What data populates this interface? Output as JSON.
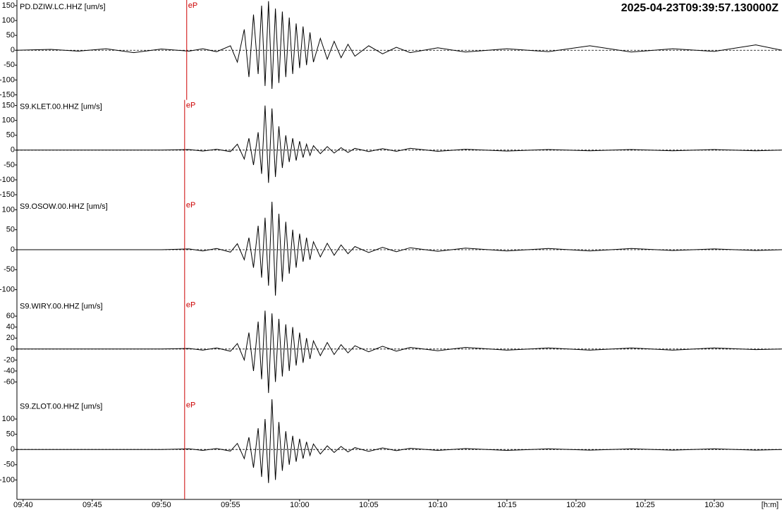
{
  "title": "2025-04-23T09:39:57.130000Z",
  "chart_data": [
    {
      "type": "line",
      "title": "PD.DZIW.LC.HHZ [um/s]",
      "x": [
        "09:39:30",
        "09:42:00",
        "09:44:00",
        "09:46:00",
        "09:48:00",
        "09:50:00",
        "09:52:00",
        "09:53:00",
        "09:54:00",
        "09:55:00",
        "09:55:30",
        "09:56:00",
        "09:56:20",
        "09:56:40",
        "09:57:00",
        "09:57:15",
        "09:57:30",
        "09:57:45",
        "09:58:00",
        "09:58:15",
        "09:58:30",
        "09:58:45",
        "09:59:00",
        "09:59:15",
        "09:59:30",
        "09:59:45",
        "10:00:00",
        "10:00:15",
        "10:00:30",
        "10:00:45",
        "10:01:00",
        "10:01:30",
        "10:02:00",
        "10:02:30",
        "10:03:00",
        "10:03:30",
        "10:04:00",
        "10:05:00",
        "10:06:00",
        "10:07:00",
        "10:08:00",
        "10:10:00",
        "10:12:00",
        "10:15:00",
        "10:18:00",
        "10:21:00",
        "10:24:00",
        "10:27:00",
        "10:30:00",
        "10:33:00",
        "10:34:54"
      ],
      "values": [
        0,
        3,
        -3,
        5,
        -8,
        4,
        -3,
        5,
        -5,
        15,
        -40,
        70,
        -90,
        120,
        -80,
        150,
        -120,
        165,
        -130,
        140,
        -110,
        130,
        -90,
        110,
        -80,
        90,
        -60,
        80,
        -50,
        60,
        -40,
        40,
        -30,
        30,
        -25,
        20,
        -20,
        15,
        -12,
        10,
        -8,
        8,
        -6,
        5,
        -5,
        15,
        -6,
        5,
        -4,
        18,
        0
      ],
      "color": "#000000",
      "xlim": [
        "09:39:30",
        "10:34:54"
      ],
      "ylim": [
        -167,
        169
      ],
      "yticks": [
        150,
        100,
        50,
        0,
        -50,
        -100,
        -150
      ],
      "pick": {
        "label": "eP",
        "time": "09:51:50",
        "color": "#cc0000"
      }
    },
    {
      "type": "line",
      "title": "S9.KLET.00.HHZ [um/s]",
      "x": [
        "09:39:30",
        "09:42:00",
        "09:44:00",
        "09:46:00",
        "09:48:00",
        "09:50:00",
        "09:52:00",
        "09:53:00",
        "09:54:00",
        "09:55:00",
        "09:55:30",
        "09:56:00",
        "09:56:20",
        "09:56:40",
        "09:57:00",
        "09:57:15",
        "09:57:30",
        "09:57:45",
        "09:58:00",
        "09:58:15",
        "09:58:30",
        "09:58:45",
        "09:59:00",
        "09:59:15",
        "09:59:30",
        "09:59:45",
        "10:00:00",
        "10:00:15",
        "10:00:30",
        "10:00:45",
        "10:01:00",
        "10:01:30",
        "10:02:00",
        "10:02:30",
        "10:03:00",
        "10:03:30",
        "10:04:00",
        "10:05:00",
        "10:06:00",
        "10:07:00",
        "10:08:00",
        "10:10:00",
        "10:12:00",
        "10:15:00",
        "10:18:00",
        "10:21:00",
        "10:24:00",
        "10:27:00",
        "10:30:00",
        "10:33:00",
        "10:34:54"
      ],
      "values": [
        0,
        0,
        0,
        0,
        0,
        0,
        2,
        -3,
        3,
        -5,
        20,
        -30,
        40,
        -50,
        60,
        -80,
        150,
        -110,
        140,
        -90,
        80,
        -60,
        50,
        -40,
        40,
        -35,
        30,
        -25,
        20,
        -18,
        15,
        -12,
        12,
        -10,
        8,
        -8,
        6,
        -5,
        5,
        -4,
        6,
        -4,
        3,
        -3,
        2,
        -2,
        2,
        -2,
        2,
        -2,
        0
      ],
      "color": "#000000",
      "xlim": [
        "09:39:30",
        "10:34:54"
      ],
      "ylim": [
        -167,
        169
      ],
      "yticks": [
        150,
        100,
        50,
        0,
        -50,
        -100,
        -150
      ],
      "pick": {
        "label": "eP",
        "time": "09:51:41",
        "color": "#cc0000"
      }
    },
    {
      "type": "line",
      "title": "S9.OSOW.00.HHZ [um/s]",
      "x": [
        "09:39:30",
        "09:42:00",
        "09:44:00",
        "09:46:00",
        "09:48:00",
        "09:50:00",
        "09:52:00",
        "09:53:00",
        "09:54:00",
        "09:55:00",
        "09:55:30",
        "09:56:00",
        "09:56:20",
        "09:56:40",
        "09:57:00",
        "09:57:15",
        "09:57:30",
        "09:57:45",
        "09:58:00",
        "09:58:15",
        "09:58:30",
        "09:58:45",
        "09:59:00",
        "09:59:15",
        "09:59:30",
        "09:59:45",
        "10:00:00",
        "10:00:15",
        "10:00:30",
        "10:00:45",
        "10:01:00",
        "10:01:30",
        "10:02:00",
        "10:02:30",
        "10:03:00",
        "10:03:30",
        "10:04:00",
        "10:05:00",
        "10:06:00",
        "10:07:00",
        "10:08:00",
        "10:10:00",
        "10:12:00",
        "10:15:00",
        "10:18:00",
        "10:21:00",
        "10:24:00",
        "10:27:00",
        "10:30:00",
        "10:33:00",
        "10:34:54"
      ],
      "values": [
        0,
        0,
        0,
        0,
        0,
        0,
        2,
        -3,
        3,
        -6,
        15,
        -25,
        30,
        -45,
        60,
        -70,
        80,
        -90,
        120,
        -115,
        90,
        -80,
        70,
        -60,
        50,
        -45,
        40,
        -30,
        30,
        -25,
        20,
        -18,
        16,
        -14,
        12,
        -10,
        8,
        -7,
        6,
        -5,
        5,
        -4,
        4,
        -3,
        3,
        -3,
        3,
        -2,
        2,
        -2,
        0
      ],
      "color": "#000000",
      "xlim": [
        "09:39:30",
        "10:34:54"
      ],
      "ylim": [
        -125,
        125
      ],
      "yticks": [
        100,
        50,
        0,
        -50,
        -100
      ],
      "pick": {
        "label": "eP",
        "time": "09:51:41",
        "color": "#cc0000"
      }
    },
    {
      "type": "line",
      "title": "S9.WIRY.00.HHZ [um/s]",
      "x": [
        "09:39:30",
        "09:42:00",
        "09:44:00",
        "09:46:00",
        "09:48:00",
        "09:50:00",
        "09:52:00",
        "09:53:00",
        "09:54:00",
        "09:55:00",
        "09:55:30",
        "09:56:00",
        "09:56:20",
        "09:56:40",
        "09:57:00",
        "09:57:15",
        "09:57:30",
        "09:57:45",
        "09:58:00",
        "09:58:15",
        "09:58:30",
        "09:58:45",
        "09:59:00",
        "09:59:15",
        "09:59:30",
        "09:59:45",
        "10:00:00",
        "10:00:15",
        "10:00:30",
        "10:00:45",
        "10:01:00",
        "10:01:30",
        "10:02:00",
        "10:02:30",
        "10:03:00",
        "10:03:30",
        "10:04:00",
        "10:05:00",
        "10:06:00",
        "10:07:00",
        "10:08:00",
        "10:10:00",
        "10:12:00",
        "10:15:00",
        "10:18:00",
        "10:21:00",
        "10:24:00",
        "10:27:00",
        "10:30:00",
        "10:33:00",
        "10:34:54"
      ],
      "values": [
        0,
        0,
        0,
        0,
        0,
        0,
        1,
        -2,
        2,
        -4,
        10,
        -20,
        30,
        -40,
        50,
        -55,
        70,
        -80,
        65,
        -60,
        55,
        -50,
        45,
        -40,
        40,
        -30,
        30,
        -25,
        20,
        -18,
        15,
        -12,
        12,
        -10,
        8,
        -7,
        6,
        -5,
        5,
        -4,
        3,
        -3,
        3,
        -2,
        2,
        -2,
        2,
        -2,
        2,
        -1,
        0
      ],
      "color": "#000000",
      "xlim": [
        "09:39:30",
        "10:34:54"
      ],
      "ylim": [
        -92,
        90
      ],
      "yticks": [
        60,
        40,
        20,
        0,
        -20,
        -40,
        -60
      ],
      "pick": {
        "label": "eP",
        "time": "09:51:41",
        "color": "#cc0000"
      }
    },
    {
      "type": "line",
      "title": "S9.ZLOT.00.HHZ [um/s]",
      "x": [
        "09:39:30",
        "09:42:00",
        "09:44:00",
        "09:46:00",
        "09:48:00",
        "09:50:00",
        "09:52:00",
        "09:53:00",
        "09:54:00",
        "09:55:00",
        "09:55:30",
        "09:56:00",
        "09:56:20",
        "09:56:40",
        "09:57:00",
        "09:57:15",
        "09:57:30",
        "09:57:45",
        "09:58:00",
        "09:58:15",
        "09:58:30",
        "09:58:45",
        "09:59:00",
        "09:59:15",
        "09:59:30",
        "09:59:45",
        "10:00:00",
        "10:00:15",
        "10:00:30",
        "10:00:45",
        "10:01:00",
        "10:01:30",
        "10:02:00",
        "10:02:30",
        "10:03:00",
        "10:03:30",
        "10:04:00",
        "10:05:00",
        "10:06:00",
        "10:07:00",
        "10:08:00",
        "10:10:00",
        "10:12:00",
        "10:15:00",
        "10:18:00",
        "10:21:00",
        "10:24:00",
        "10:27:00",
        "10:30:00",
        "10:33:00",
        "10:34:54"
      ],
      "values": [
        0,
        0,
        0,
        0,
        0,
        0,
        2,
        -3,
        3,
        -5,
        20,
        -30,
        40,
        -60,
        70,
        -90,
        100,
        -110,
        165,
        -100,
        90,
        -70,
        60,
        -50,
        45,
        -40,
        35,
        -30,
        25,
        -20,
        18,
        -15,
        12,
        -10,
        10,
        -8,
        6,
        -6,
        5,
        -4,
        4,
        -3,
        3,
        -3,
        2,
        -2,
        2,
        -2,
        2,
        -2,
        0
      ],
      "color": "#000000",
      "xlim": [
        "09:39:30",
        "10:34:54"
      ],
      "ylim": [
        -164,
        164
      ],
      "yticks": [
        100,
        50,
        0,
        -50,
        -100
      ],
      "pick": {
        "label": "eP",
        "time": "09:51:41",
        "color": "#cc0000"
      },
      "xticks": [
        "09:40",
        "09:45",
        "09:50",
        "09:55",
        "10:00",
        "10:05",
        "10:10",
        "10:15",
        "10:20",
        "10:25",
        "10:30"
      ],
      "xlabel": "[h:m]"
    }
  ]
}
